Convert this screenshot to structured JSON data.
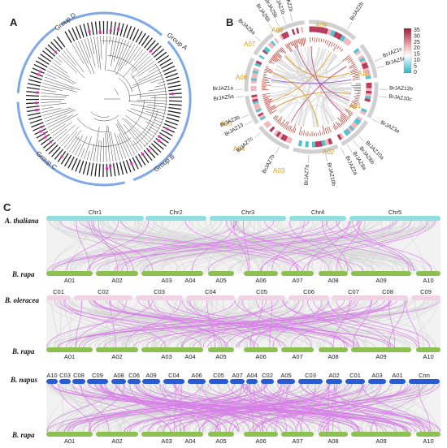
{
  "panels": {
    "a": "A",
    "b": "B",
    "c": "C"
  },
  "panel_a": {
    "groups": [
      "Group A",
      "Group B",
      "Group C",
      "Group D"
    ]
  },
  "panel_b": {
    "chromosomes": [
      "A01",
      "A02",
      "A03",
      "A04",
      "A05",
      "A06",
      "A07",
      "A08",
      "A09",
      "A10"
    ],
    "genes": [
      "BrJAZ2b",
      "BrJAZ1c",
      "BrJAZ5c",
      "BrJAZ12b",
      "BrJAZ10c",
      "BrJAZ3a",
      "BrJAZ10a",
      "BrJAZ6b",
      "BrJAZ8a",
      "BrJAZ2a",
      "BrJAZ10b",
      "BrJAZ7a",
      "BrJAZ7b",
      "BrJAZ7c",
      "BrJAZ13",
      "BrJAZ3b",
      "BrJAZ5a",
      "BrJAZ1a",
      "BrJAZ8a",
      "BrJAZ6b",
      "BrJAZ5b",
      "BrJAZ1b",
      "BrJAZ2b"
    ],
    "legend_ticks": [
      "35",
      "30",
      "25",
      "20",
      "15",
      "10",
      "5",
      "0"
    ],
    "colors": {
      "high": "#9e1b3c",
      "mid": "#ffffff",
      "low": "#29b6c8"
    }
  },
  "panel_c": {
    "species": {
      "thaliana": "A. thaliana",
      "rapa": "B. rapa",
      "oleracea": "B. oleracea",
      "napus": "B. napus"
    },
    "thaliana_chr": [
      "Chr1",
      "Chr2",
      "Chr3",
      "Chr4",
      "Chr5"
    ],
    "rapa_chr": [
      "A01",
      "A02",
      "A03",
      "A04",
      "A05",
      "A06",
      "A07",
      "A08",
      "A09",
      "A10"
    ],
    "oleracea_chr": [
      "C01",
      "C02",
      "C03",
      "C04",
      "C05",
      "C06",
      "C07",
      "C08",
      "C09"
    ],
    "napus_chr": [
      "A10",
      "C03",
      "C08",
      "C09",
      "A08",
      "C06",
      "A09",
      "C04",
      "A06",
      "C05",
      "A07",
      "A04",
      "C02",
      "A05",
      "C03",
      "A02",
      "C01",
      "A03",
      "A01",
      "Cnn"
    ],
    "colors": {
      "cyan": "#8fdee0",
      "green": "#8cc152",
      "pink": "#f1d4e4",
      "blue": "#2a5bd7",
      "magenta": "#d77ee8"
    }
  }
}
